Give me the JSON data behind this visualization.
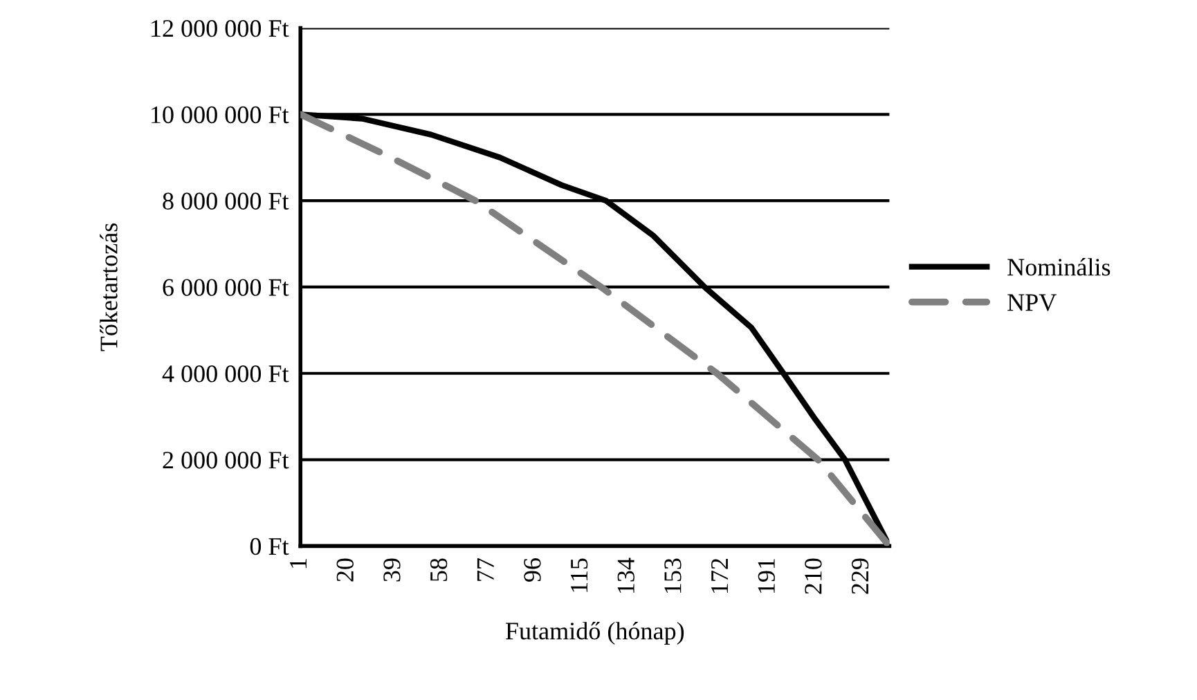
{
  "chart_data": {
    "type": "line",
    "xlabel": "Futamidő (hónap)",
    "ylabel": "Tőketartozás",
    "xlim": [
      1,
      240
    ],
    "xticks": [
      1,
      20,
      39,
      58,
      77,
      96,
      115,
      134,
      153,
      172,
      191,
      210,
      229
    ],
    "ylim": [
      0,
      12000000
    ],
    "yticks": [
      {
        "value": 0,
        "label": "0 Ft"
      },
      {
        "value": 2000000,
        "label": "2 000 000 Ft"
      },
      {
        "value": 4000000,
        "label": "4 000 000 Ft"
      },
      {
        "value": 6000000,
        "label": "6 000 000 Ft"
      },
      {
        "value": 8000000,
        "label": "8 000 000 Ft"
      },
      {
        "value": 10000000,
        "label": "10 000 000 Ft"
      },
      {
        "value": 12000000,
        "label": "12 000 000 Ft"
      }
    ],
    "grid": "y",
    "legend": "right",
    "series": [
      {
        "name": "Nominális",
        "color": "#000000",
        "line_style": "solid",
        "x": [
          1,
          26,
          54,
          82,
          107,
          125,
          144,
          165,
          184,
          197,
          210,
          222,
          240
        ],
        "values": [
          10000000,
          9900000,
          9530000,
          9000000,
          8360000,
          8000000,
          7200000,
          6000000,
          5060000,
          4000000,
          2930000,
          2000000,
          0
        ]
      },
      {
        "name": "NPV",
        "color": "#808080",
        "line_style": "dashed",
        "x": [
          1,
          36,
          72,
          123,
          170,
          211,
          240
        ],
        "values": [
          10000000,
          9050000,
          8000000,
          6000000,
          4000000,
          2000000,
          0
        ]
      }
    ]
  }
}
